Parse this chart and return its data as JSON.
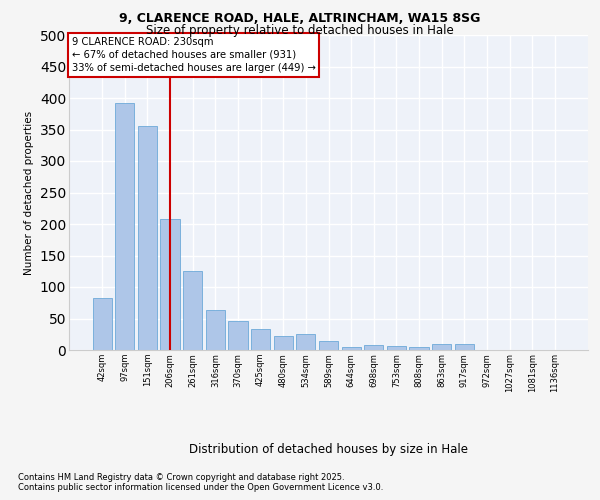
{
  "title_line1": "9, CLARENCE ROAD, HALE, ALTRINCHAM, WA15 8SG",
  "title_line2": "Size of property relative to detached houses in Hale",
  "xlabel": "Distribution of detached houses by size in Hale",
  "ylabel": "Number of detached properties",
  "categories": [
    "42sqm",
    "97sqm",
    "151sqm",
    "206sqm",
    "261sqm",
    "316sqm",
    "370sqm",
    "425sqm",
    "480sqm",
    "534sqm",
    "589sqm",
    "644sqm",
    "698sqm",
    "753sqm",
    "808sqm",
    "863sqm",
    "917sqm",
    "972sqm",
    "1027sqm",
    "1081sqm",
    "1136sqm"
  ],
  "values": [
    82,
    392,
    356,
    208,
    125,
    63,
    46,
    33,
    22,
    25,
    14,
    5,
    8,
    6,
    4,
    9,
    10,
    0,
    0,
    0,
    0
  ],
  "bar_color": "#aec6e8",
  "bar_edge_color": "#5a9fd4",
  "vline_x": 3,
  "vline_color": "#cc0000",
  "annotation_text": "9 CLARENCE ROAD: 230sqm\n← 67% of detached houses are smaller (931)\n33% of semi-detached houses are larger (449) →",
  "annotation_box_color": "#ffffff",
  "annotation_box_edge": "#cc0000",
  "bg_color": "#eef2f9",
  "grid_color": "#ffffff",
  "footer_line1": "Contains HM Land Registry data © Crown copyright and database right 2025.",
  "footer_line2": "Contains public sector information licensed under the Open Government Licence v3.0.",
  "ylim": [
    0,
    500
  ],
  "yticks": [
    0,
    50,
    100,
    150,
    200,
    250,
    300,
    350,
    400,
    450,
    500
  ],
  "fig_bg": "#f5f5f5"
}
